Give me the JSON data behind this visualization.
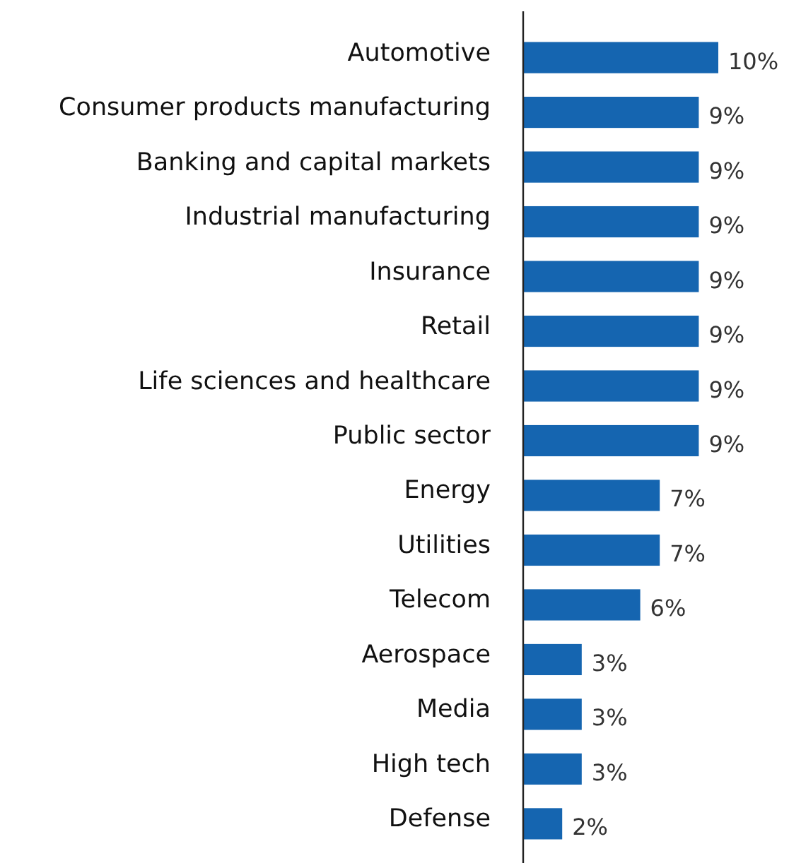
{
  "chart_data": {
    "type": "bar",
    "orientation": "horizontal",
    "color": "#1565b0",
    "categories": [
      "Automotive",
      "Consumer products manufacturing",
      "Banking and capital markets",
      "Industrial manufacturing",
      "Insurance",
      "Retail",
      "Life sciences and healthcare",
      "Public sector",
      "Energy",
      "Utilities",
      "Telecom",
      "Aerospace",
      "Media",
      "High tech",
      "Defense"
    ],
    "values": [
      10,
      9,
      9,
      9,
      9,
      9,
      9,
      9,
      7,
      7,
      6,
      3,
      3,
      3,
      2
    ],
    "value_labels": [
      "10%",
      "9%",
      "9%",
      "9%",
      "9%",
      "9%",
      "9%",
      "9%",
      "7%",
      "7%",
      "6%",
      "3%",
      "3%",
      "3%",
      "2%"
    ]
  }
}
